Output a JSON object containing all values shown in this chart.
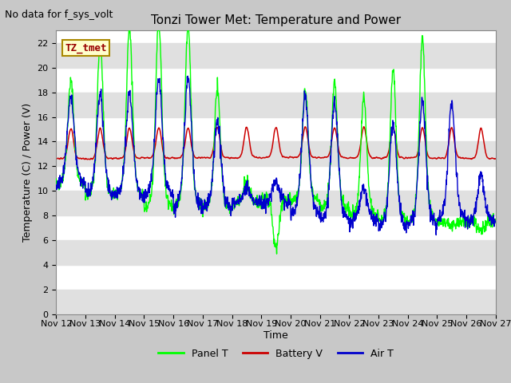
{
  "title": "Tonzi Tower Met: Temperature and Power",
  "no_data_text": "No data for f_sys_volt",
  "xlabel": "Time",
  "ylabel": "Temperature (C) / Power (V)",
  "ylim": [
    0,
    23
  ],
  "yticks": [
    0,
    2,
    4,
    6,
    8,
    10,
    12,
    14,
    16,
    18,
    20,
    22
  ],
  "xtick_labels": [
    "Nov 12",
    "Nov 13",
    "Nov 14",
    "Nov 15",
    "Nov 16",
    "Nov 17",
    "Nov 18",
    "Nov 19",
    "Nov 20",
    "Nov 21",
    "Nov 22",
    "Nov 23",
    "Nov 24",
    "Nov 25",
    "Nov 26",
    "Nov 27"
  ],
  "panel_t_color": "#00ff00",
  "battery_v_color": "#cc0000",
  "air_t_color": "#0000cc",
  "plot_bg_color": "#ffffff",
  "band_color": "#e0e0e0",
  "legend_labels": [
    "Panel T",
    "Battery V",
    "Air T"
  ],
  "annotation_text": "TZ_tmet",
  "annotation_color": "#990000",
  "annotation_bg": "#ffffcc",
  "annotation_border": "#aa8800",
  "title_fontsize": 11,
  "label_fontsize": 9,
  "tick_fontsize": 8,
  "no_data_fontsize": 9
}
